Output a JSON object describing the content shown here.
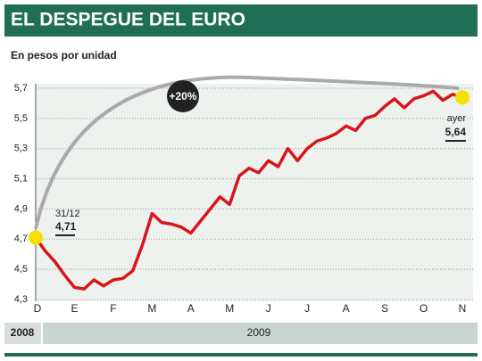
{
  "chart_data": {
    "type": "line",
    "title": "EL DESPEGUE DEL EURO",
    "subtitle": "En pesos por unidad",
    "xticklabels": [
      "D",
      "E",
      "F",
      "M",
      "A",
      "M",
      "J",
      "J",
      "A",
      "S",
      "O",
      "N"
    ],
    "years": [
      "2008",
      "2009"
    ],
    "color": "#d7161b",
    "values": [
      4.71,
      4.62,
      4.55,
      4.46,
      4.38,
      4.37,
      4.43,
      4.39,
      4.43,
      4.44,
      4.49,
      4.66,
      4.87,
      4.81,
      4.8,
      4.78,
      4.74,
      4.82,
      4.9,
      4.98,
      4.93,
      5.12,
      5.17,
      5.14,
      5.22,
      5.18,
      5.3,
      5.22,
      5.3,
      5.35,
      5.37,
      5.4,
      5.45,
      5.42,
      5.5,
      5.52,
      5.58,
      5.63,
      5.57,
      5.63,
      5.65,
      5.68,
      5.62,
      5.66,
      5.64
    ],
    "value_labels": [
      "4,71",
      null,
      null,
      null,
      null,
      null,
      null,
      null,
      null,
      null,
      null,
      null,
      null,
      null,
      null,
      null,
      null,
      null,
      null,
      null,
      null,
      null,
      null,
      null,
      null,
      null,
      null,
      null,
      null,
      null,
      null,
      null,
      null,
      null,
      null,
      null,
      null,
      null,
      null,
      null,
      null,
      null,
      null,
      null,
      "5,64"
    ],
    "start_note": "31/12",
    "end_note": "ayer",
    "change_note": "+20%",
    "ylim": [
      4.3,
      5.7
    ],
    "yticks": [
      {
        "value": 4.3,
        "label": "4,3"
      },
      {
        "value": 4.5,
        "label": "4,5"
      },
      {
        "value": 4.7,
        "label": "4,7"
      },
      {
        "value": 4.9,
        "label": "4,9"
      },
      {
        "value": 5.1,
        "label": "5,1"
      },
      {
        "value": 5.3,
        "label": "5,3"
      },
      {
        "value": 5.5,
        "label": "5,5"
      },
      {
        "value": 5.7,
        "label": "5,7"
      }
    ],
    "grid": true
  }
}
